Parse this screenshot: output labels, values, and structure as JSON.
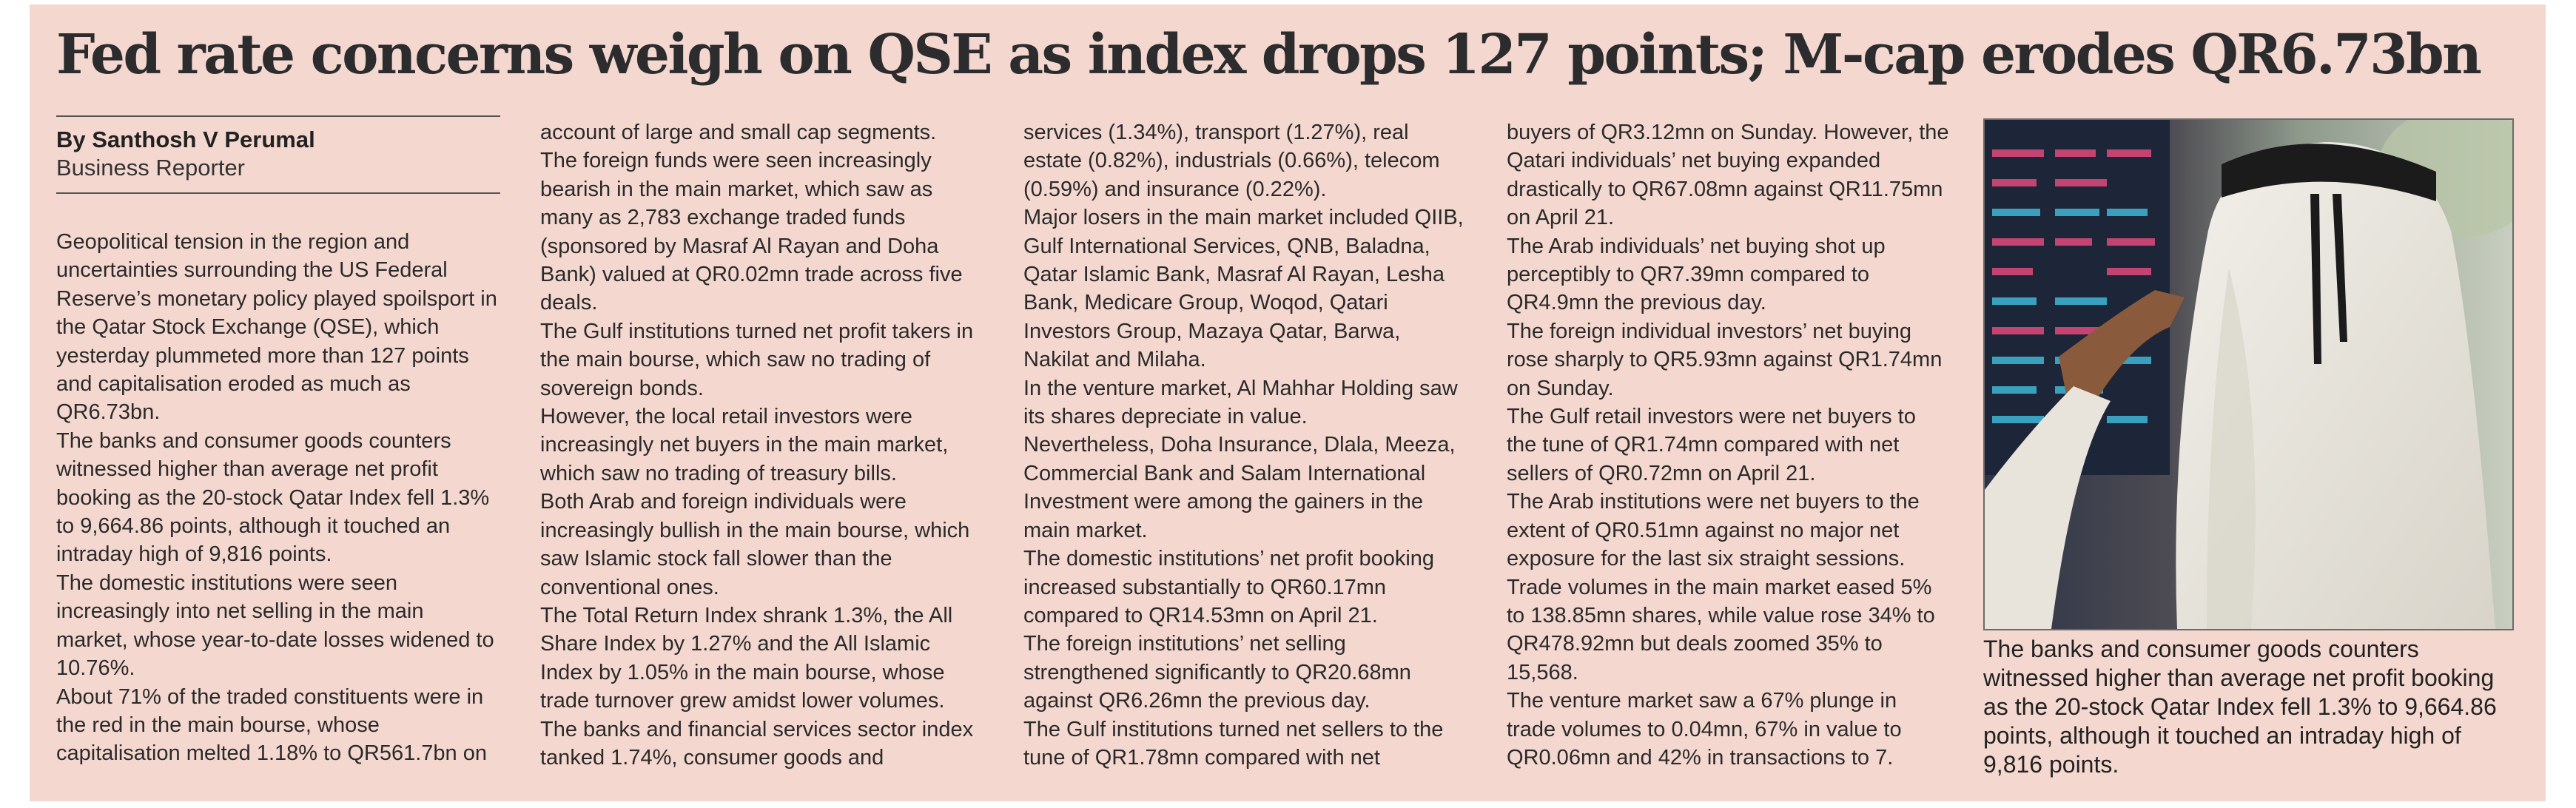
{
  "headline": "Fed rate concerns weigh on QSE as index drops 127 points; M-cap erodes QR6.73bn",
  "byline": {
    "author": "By Santhosh V Perumal",
    "role": "Business Reporter"
  },
  "columns": [
    [
      "Geopolitical tension in the region and uncertainties surrounding the US Federal Reserve’s monetary policy played spoilsport in the Qatar Stock Exchange (QSE), which yesterday plummeted more than 127 points and capitalisation eroded as much as QR6.73bn.",
      "The banks and consumer goods counters witnessed higher than average net profit booking as the 20-stock Qatar Index fell 1.3% to 9,664.86 points, although it touched an intraday high of 9,816 points.",
      "The domestic institutions were seen increasingly into net selling in the main market, whose year-to-date losses widened to 10.76%.",
      "About 71% of the traded constituents were in the red in the main bourse, whose capitalisation melted 1.18% to QR561.7bn on"
    ],
    [
      "account of large and small cap segments.",
      "The foreign funds were seen increasingly bearish in the main market, which saw as many as 2,783 exchange traded funds (sponsored by Masraf Al Rayan and Doha Bank) valued at QR0.02mn trade across five deals.",
      "The Gulf institutions turned net profit takers in the main bourse, which saw no trading of sovereign bonds.",
      "However, the local retail investors were increasingly net buyers in the main market, which saw no trading of treasury bills.",
      "Both Arab and foreign individuals were increasingly bullish in the main bourse, which saw Islamic stock fall slower than the conventional ones.",
      "The Total Return Index shrank 1.3%, the All Share Index by 1.27% and the All Islamic Index by 1.05% in the main bourse, whose trade turnover grew amidst lower volumes.",
      "The banks and financial services sector index tanked 1.74%, consumer goods and"
    ],
    [
      "services (1.34%), transport (1.27%), real estate (0.82%), industrials (0.66%), telecom (0.59%) and insurance (0.22%).",
      "Major losers in the main market included QIIB, Gulf International Services, QNB, Baladna, Qatar Islamic Bank, Masraf Al Rayan, Lesha Bank, Medicare Group, Woqod, Qatari Investors Group, Mazaya Qatar, Barwa, Nakilat and Milaha.",
      "In the venture market, Al Mahhar Holding saw its shares depreciate in value.",
      "Nevertheless, Doha Insurance, Dlala, Meeza, Commercial Bank and Salam International Investment were among the gainers in the main market.",
      "The domestic institutions’ net profit booking increased substantially to QR60.17mn compared to QR14.53mn on April 21.",
      "The foreign institutions’ net selling strengthened significantly to QR20.68mn against QR6.26mn the previous day.",
      "The Gulf institutions turned net sellers to the tune of QR1.78mn compared with net"
    ],
    [
      "buyers of QR3.12mn on Sunday. However, the Qatari individuals’ net buying expanded drastically to QR67.08mn against QR11.75mn on April 21.",
      "The Arab individuals’ net buying shot up perceptibly to QR7.39mn compared to QR4.9mn the previous day.",
      "The foreign individual investors’ net buying rose sharply to QR5.93mn against QR1.74mn on Sunday.",
      "The Gulf retail investors were net buyers to the tune of QR1.74mn compared with net sellers of QR0.72mn on April 21.",
      "The Arab institutions were net buyers to the extent of QR0.51mn against no major net exposure for the last six straight sessions.",
      "Trade volumes in the main market eased 5% to 138.85mn shares, while value rose 34% to QR478.92mn but deals zoomed 35% to 15,568.",
      "The venture market saw a 67% plunge in trade volumes to 0.04mn, 67% in value to QR0.06mn and 42% in transactions to 7."
    ]
  ],
  "caption": "The banks and consumer goods counters witnessed higher than average net profit booking as the 20-stock Qatar Index fell 1.3% to 9,664.86 points, although it touched an intraday high of 9,816 points.",
  "colors": {
    "panel_background": "#f4d8cf",
    "headline_text": "#2c2c2e",
    "body_text": "#2a2a2a"
  }
}
